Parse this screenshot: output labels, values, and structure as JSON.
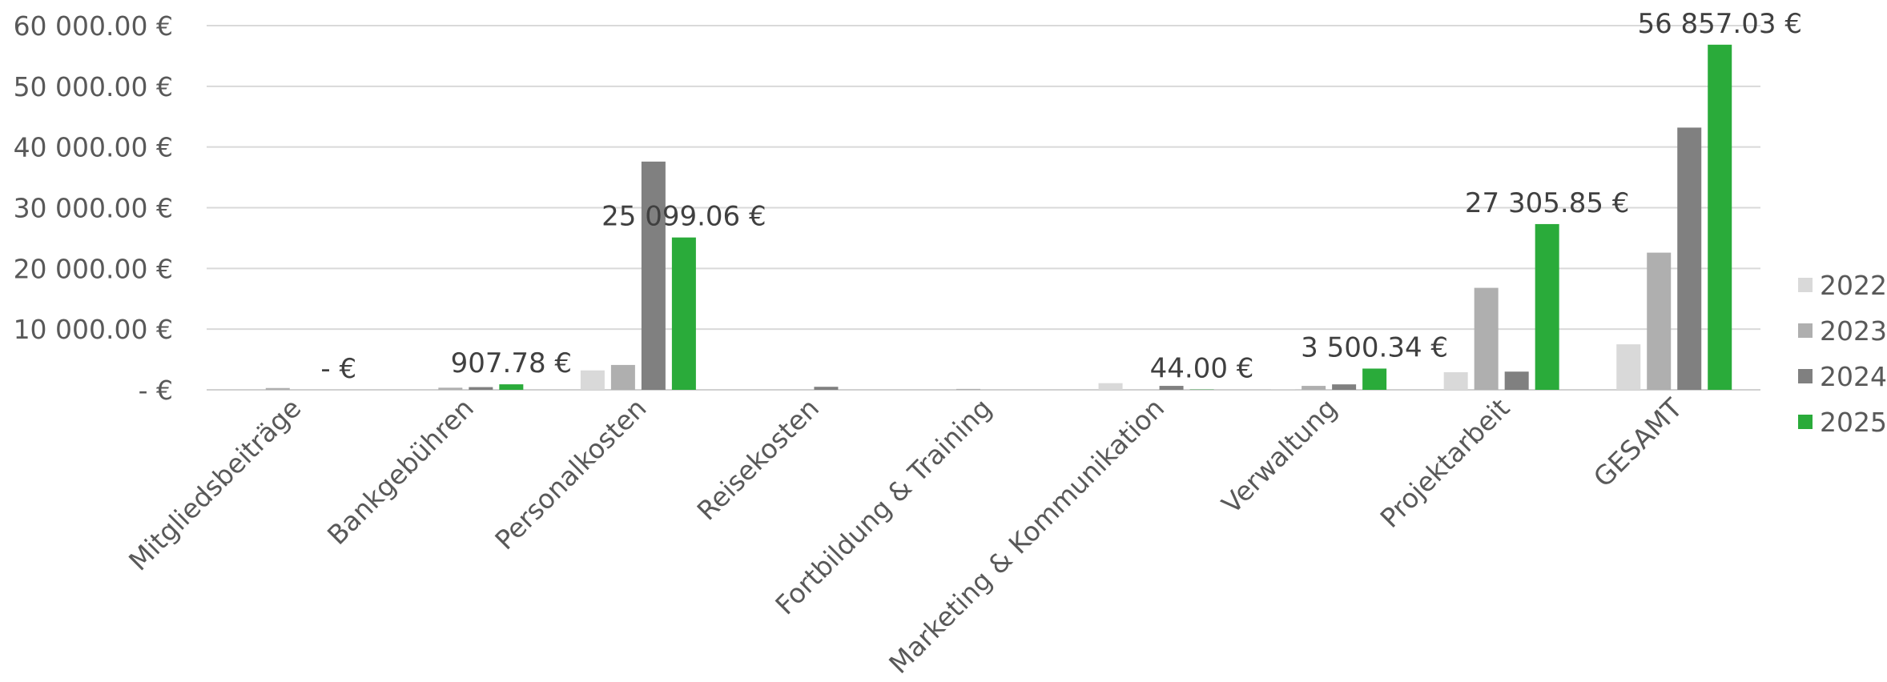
{
  "chart_data": {
    "type": "bar",
    "categories": [
      "Mitgliedsbeiträge",
      "Bankgebühren",
      "Personalkosten",
      "Reisekosten",
      "Fortbildung & Training",
      "Marketing & Kommunikation",
      "Verwaltung",
      "Projektarbeit",
      "GESAMT"
    ],
    "series": [
      {
        "name": "2022",
        "color": "#d9d9d9",
        "values": [
          0,
          0,
          3200,
          0,
          0,
          1100,
          100,
          2900,
          7500
        ]
      },
      {
        "name": "2023",
        "color": "#afafaf",
        "values": [
          300,
          350,
          4100,
          0,
          150,
          0,
          650,
          16800,
          22600
        ]
      },
      {
        "name": "2024",
        "color": "#808080",
        "values": [
          0,
          450,
          37600,
          500,
          0,
          650,
          900,
          3000,
          43200
        ]
      },
      {
        "name": "2025",
        "color": "#2aab3a",
        "values": [
          0,
          907.78,
          25099.06,
          0,
          0,
          44.0,
          3500.34,
          27305.85,
          56857.03
        ]
      }
    ],
    "data_labels": [
      "-   €",
      "907.78 €",
      "25 099.06 €",
      "",
      "",
      "44.00 €",
      "3 500.34 €",
      "27 305.85 €",
      "56 857.03 €"
    ],
    "y_ticks": [
      {
        "value": 0,
        "label": "-   €"
      },
      {
        "value": 10000,
        "label": "10 000.00 €"
      },
      {
        "value": 20000,
        "label": "20 000.00 €"
      },
      {
        "value": 30000,
        "label": "30 000.00 €"
      },
      {
        "value": 40000,
        "label": "40 000.00 €"
      },
      {
        "value": 50000,
        "label": "50 000.00 €"
      },
      {
        "value": 60000,
        "label": "60 000.00 €"
      }
    ],
    "ylim": [
      0,
      60000
    ],
    "grid": true,
    "legend_position": "right",
    "title": "",
    "xlabel": "",
    "ylabel": ""
  }
}
